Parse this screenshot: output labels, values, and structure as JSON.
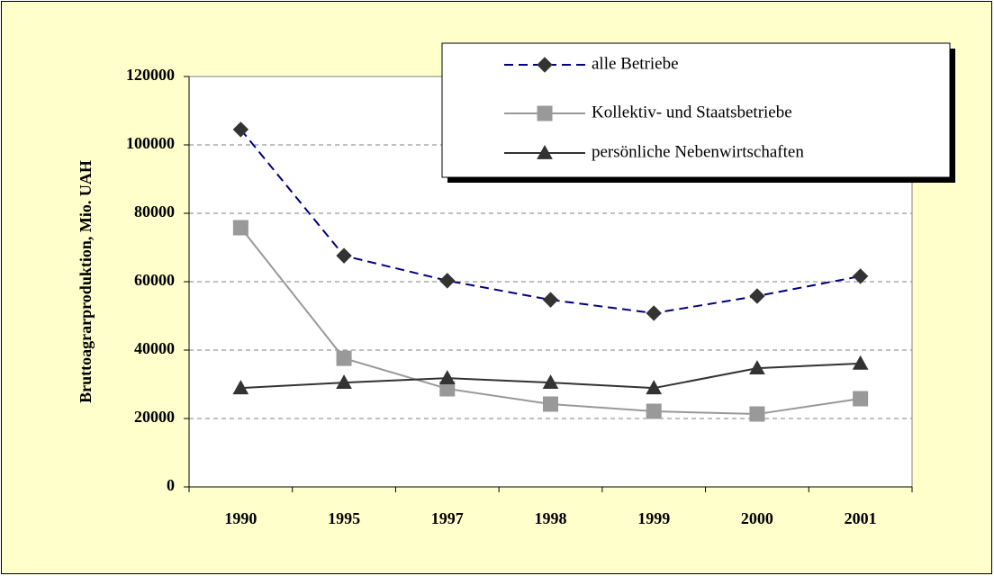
{
  "chart_data": {
    "type": "line",
    "y_label": "Bruttoagrarproduktion, Mio. UAH",
    "categories": [
      "1990",
      "1995",
      "1997",
      "1998",
      "1999",
      "2000",
      "2001"
    ],
    "series": [
      {
        "name": "alle Betriebe",
        "color": "#000080",
        "marker": "diamond",
        "marker_color": "#333333",
        "line_style": "dashed",
        "values": [
          104500,
          67600,
          60300,
          54700,
          50800,
          55800,
          61600
        ]
      },
      {
        "name": "Kollektiv- und Staatsbetriebe",
        "color": "#999999",
        "marker": "square",
        "marker_color": "#999999",
        "line_style": "solid",
        "values": [
          75800,
          37600,
          28700,
          24200,
          22100,
          21300,
          25800
        ]
      },
      {
        "name": "persönliche Nebenwirtschaften",
        "color": "#333333",
        "marker": "triangle",
        "marker_color": "#333333",
        "line_style": "solid",
        "values": [
          28900,
          30500,
          31800,
          30500,
          28900,
          34700,
          36100
        ]
      }
    ],
    "ylim": [
      0,
      120000
    ],
    "yticks": [
      0,
      20000,
      40000,
      60000,
      80000,
      100000,
      120000
    ],
    "grid": true,
    "legend": "top-right"
  }
}
